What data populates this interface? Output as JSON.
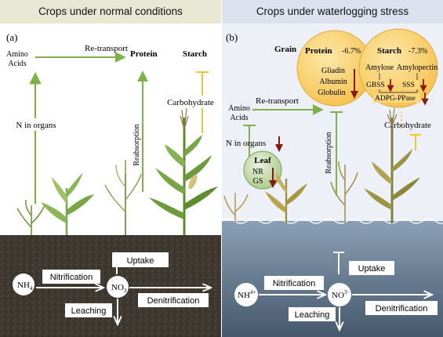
{
  "panel_a": {
    "header": "Crops under normal conditions",
    "label": "(a)",
    "amino_1": "Amino",
    "amino_2": "Acids",
    "retransport": "Re-transport",
    "protein": "Protein",
    "starch": "Starch",
    "reabsorption": "Reabsorption",
    "carbohydrate": "Carbohydrate",
    "n_in_organs": "N in organs",
    "uptake": "Uptake",
    "nitrification": "Nitrification",
    "nh4": "NH",
    "nh4_sub": "4",
    "no3": "NO",
    "no3_sub": "3",
    "leaching": "Leaching",
    "denitrification": "Denitrification"
  },
  "panel_b": {
    "header": "Crops under waterlogging stress",
    "label": "(b)",
    "grain": "Grain",
    "protein": "Protein",
    "protein_change": "-6.7%",
    "gliadin": "Gliadin",
    "albumin": "Albumin",
    "globulin": "Globulin",
    "starch": "Starch",
    "starch_change": "-7.3%",
    "amylose": "Amylose",
    "amylopectin": "Amylopectin",
    "gbss": "GBSS",
    "sss": "SSS",
    "adpg": "ADPG-PPase",
    "amino_1": "Amino",
    "amino_2": "Acids",
    "retransport": "Re-transport",
    "reabsorption": "Reabsorption",
    "carbohydrate": "Carbohydrate",
    "n_in_organs": "N in organs",
    "leaf": "Leaf",
    "nr": "NR",
    "gs": "GS",
    "uptake": "Uptake",
    "nitrification": "Nitrification",
    "nh4": "NH",
    "nh4_sup": "4+",
    "no3": "NO",
    "no3_sup": "3−",
    "leaching": "Leaching",
    "denitrification": "Denitrification"
  },
  "colors": {
    "green_arrow": "#7fb04c",
    "yellow_arrow": "#f2c437",
    "down_arrow": "#8b1a10",
    "grain_circle": "#fbd67a",
    "leaf_circle": "#c9dcb2",
    "header_a": "#e6e8d4",
    "header_b": "#dde1ee",
    "soil": "#3e3730",
    "water": "#5a6f86"
  }
}
